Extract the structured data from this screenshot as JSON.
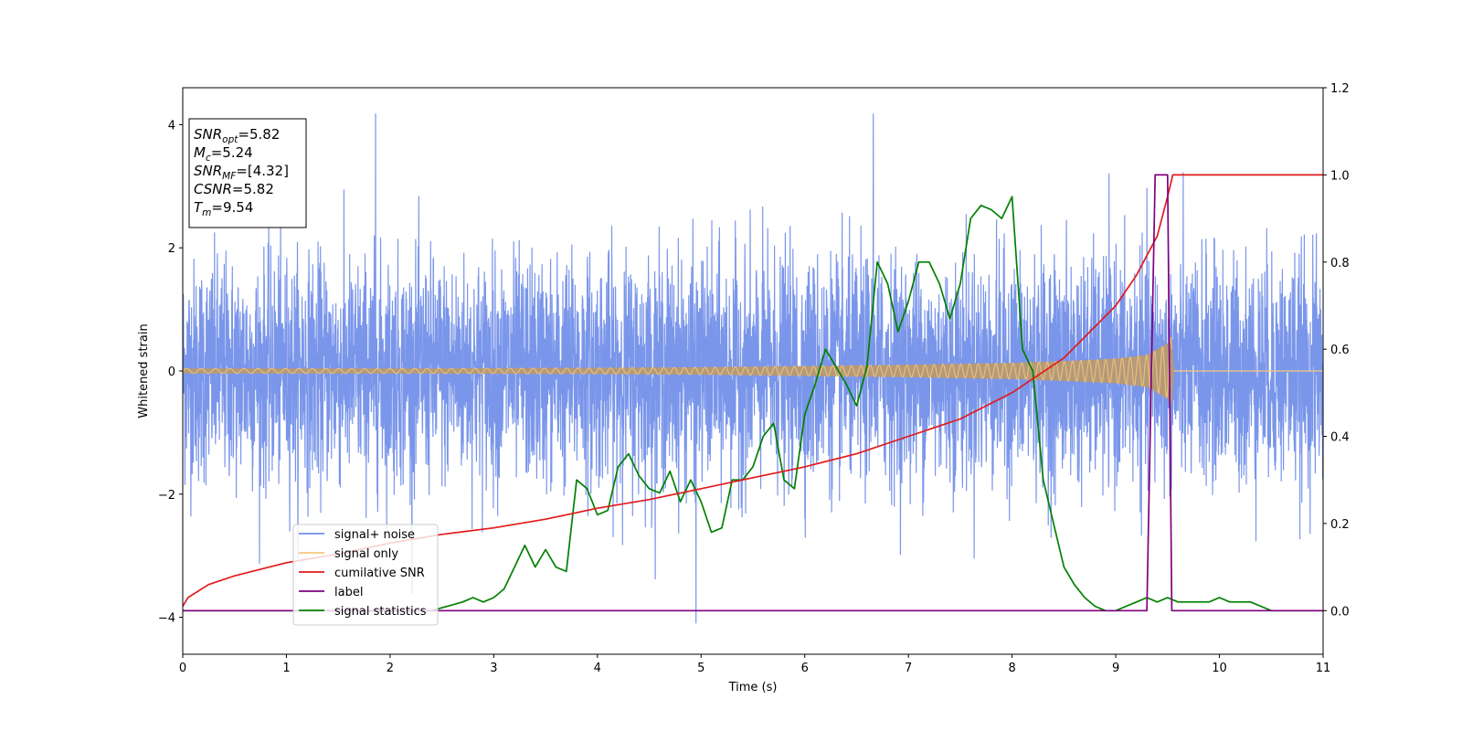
{
  "chart_data": {
    "type": "line",
    "xlabel": "Time (s)",
    "ylabel": "Whitened strain",
    "x_ticks": [
      "0",
      "1",
      "2",
      "3",
      "4",
      "5",
      "6",
      "7",
      "8",
      "9",
      "10",
      "11"
    ],
    "y_ticks": [
      "4",
      "2",
      "0",
      "−2",
      "−4"
    ],
    "y2_ticks": [
      "1.2",
      "1.0",
      "0.8",
      "0.6",
      "0.4",
      "0.2",
      "0.0"
    ],
    "xlim": [
      0,
      11
    ],
    "ylim": [
      -4.6,
      4.6
    ],
    "y2lim": [
      -0.1,
      1.2
    ],
    "grid": false,
    "legend_position": "lower-left",
    "annotation": {
      "lines": [
        {
          "main": "SNR",
          "sub": "opt",
          "value": "=5.82"
        },
        {
          "main": "M",
          "sub": "c",
          "value": "=5.24"
        },
        {
          "main": "SNR",
          "sub": "MF",
          "value": "=[4.32]"
        },
        {
          "main": "CSNR",
          "sub": "",
          "value": "=5.82"
        },
        {
          "main": "T",
          "sub": "m",
          "value": "=9.54"
        }
      ]
    },
    "series": [
      {
        "name": "signal+ noise",
        "axis": "left",
        "color": "#4169e1",
        "description": "whitened noise, approx gaussian with sd 0.9, range approx -4.1 to 4.2",
        "notable_extremes": [
          [
            1.86,
            4.18
          ],
          [
            6.66,
            4.18
          ],
          [
            4.95,
            -4.1
          ]
        ]
      },
      {
        "name": "signal only",
        "axis": "left",
        "color": "#f5c77e",
        "description": "chirp with amplitude growing from ~0.04 at t=0 to ~0.6 at t=9.54, zero afterwards",
        "amplitude_envelope": {
          "t": [
            0,
            2,
            4,
            5,
            6,
            7,
            8,
            8.5,
            9,
            9.3,
            9.5,
            9.54,
            9.56,
            11
          ],
          "amp": [
            0.04,
            0.04,
            0.05,
            0.06,
            0.08,
            0.1,
            0.13,
            0.16,
            0.2,
            0.26,
            0.45,
            0.6,
            0,
            0
          ]
        }
      },
      {
        "name": "cumilative SNR",
        "axis": "right",
        "color": "#e31a1c",
        "x": [
          0,
          0.05,
          0.25,
          0.5,
          1,
          1.5,
          2,
          2.5,
          3,
          3.5,
          4,
          4.5,
          5,
          5.5,
          6,
          6.5,
          7,
          7.5,
          8,
          8.5,
          9,
          9.2,
          9.4,
          9.5,
          9.55,
          11
        ],
        "y": [
          0.01,
          0.03,
          0.06,
          0.08,
          0.11,
          0.13,
          0.155,
          0.175,
          0.19,
          0.21,
          0.235,
          0.255,
          0.28,
          0.305,
          0.33,
          0.36,
          0.4,
          0.44,
          0.5,
          0.58,
          0.7,
          0.77,
          0.86,
          0.95,
          1.0,
          1.0
        ]
      },
      {
        "name": "label",
        "axis": "right",
        "color": "#800080",
        "x": [
          0,
          9.3,
          9.38,
          9.5,
          9.54,
          9.6,
          11
        ],
        "y": [
          0,
          0,
          1,
          1,
          0,
          0,
          0
        ]
      },
      {
        "name": "signal statistics",
        "axis": "right",
        "color": "#008000",
        "x": [
          0,
          2.4,
          2.7,
          2.8,
          2.9,
          3.0,
          3.1,
          3.2,
          3.3,
          3.4,
          3.5,
          3.6,
          3.7,
          3.8,
          3.9,
          4.0,
          4.1,
          4.2,
          4.3,
          4.4,
          4.5,
          4.6,
          4.7,
          4.8,
          4.9,
          5.0,
          5.1,
          5.2,
          5.3,
          5.4,
          5.5,
          5.6,
          5.7,
          5.8,
          5.9,
          6.0,
          6.1,
          6.2,
          6.3,
          6.4,
          6.5,
          6.6,
          6.7,
          6.8,
          6.9,
          7.0,
          7.1,
          7.2,
          7.3,
          7.4,
          7.5,
          7.6,
          7.7,
          7.8,
          7.9,
          8.0,
          8.1,
          8.2,
          8.3,
          8.4,
          8.5,
          8.6,
          8.7,
          8.8,
          8.9,
          9.0,
          9.1,
          9.2,
          9.3,
          9.4,
          9.5,
          9.6,
          9.7,
          9.8,
          9.9,
          10.0,
          10.1,
          10.2,
          10.3,
          10.4,
          10.5,
          10.6,
          10.8,
          11
        ],
        "y": [
          0.0,
          0.0,
          0.02,
          0.03,
          0.02,
          0.03,
          0.05,
          0.1,
          0.15,
          0.1,
          0.14,
          0.1,
          0.09,
          0.3,
          0.28,
          0.22,
          0.23,
          0.33,
          0.36,
          0.31,
          0.28,
          0.27,
          0.32,
          0.25,
          0.3,
          0.25,
          0.18,
          0.19,
          0.3,
          0.3,
          0.33,
          0.4,
          0.43,
          0.3,
          0.28,
          0.45,
          0.52,
          0.6,
          0.56,
          0.52,
          0.47,
          0.56,
          0.8,
          0.75,
          0.64,
          0.71,
          0.8,
          0.8,
          0.75,
          0.67,
          0.75,
          0.9,
          0.93,
          0.92,
          0.9,
          0.95,
          0.6,
          0.55,
          0.3,
          0.2,
          0.1,
          0.06,
          0.03,
          0.01,
          0.0,
          0.0,
          0.01,
          0.02,
          0.03,
          0.02,
          0.03,
          0.02,
          0.02,
          0.02,
          0.02,
          0.03,
          0.02,
          0.02,
          0.02,
          0.01,
          0.0,
          0.0,
          0.0,
          0.0
        ]
      }
    ]
  }
}
